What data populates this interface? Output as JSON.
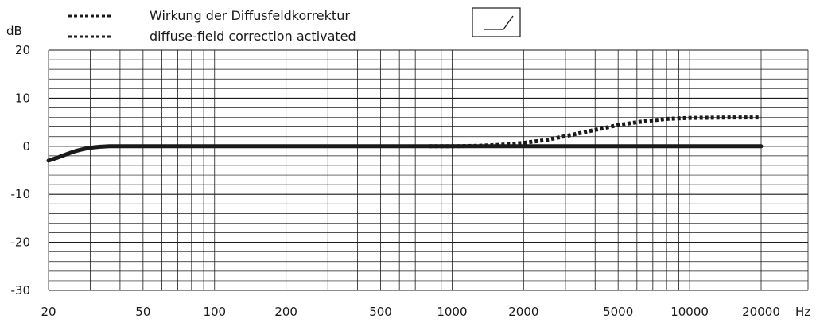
{
  "chart_data": {
    "type": "line",
    "title": "",
    "xlabel": "",
    "ylabel": "",
    "y_unit": "dB",
    "x_unit": "Hz",
    "x_scale": "log",
    "xlim": [
      20,
      20000
    ],
    "ylim": [
      -30,
      20
    ],
    "grid": true,
    "x_tick_labels": [
      "20",
      "50",
      "100",
      "200",
      "500",
      "1000",
      "2000",
      "5000",
      "10000",
      "20000"
    ],
    "y_tick_labels": [
      "20",
      "10",
      "0",
      "-10",
      "-20",
      "-30"
    ],
    "legend": {
      "placement": "top-left",
      "entries": [
        "Wirkung der Diffusfeldkorrektur",
        "diffuse-field correction activated"
      ]
    },
    "filter_symbol": "high-shelf-icon",
    "series": [
      {
        "style": "solid",
        "color": "#1a1a1a",
        "x": [
          20,
          22,
          24,
          26,
          28,
          30,
          33,
          36,
          40,
          50,
          100,
          1000,
          20000
        ],
        "y": [
          -3.0,
          -2.3,
          -1.6,
          -1.0,
          -0.6,
          -0.3,
          -0.1,
          0.0,
          0.0,
          0.0,
          0.0,
          0.0,
          0.0
        ]
      },
      {
        "name": "diffuse-field correction activated",
        "style": "dotted",
        "color": "#1a1a1a",
        "x": [
          800,
          1000,
          1300,
          1600,
          2000,
          2500,
          3000,
          4000,
          5000,
          6000,
          7000,
          8000,
          10000,
          15000,
          20000
        ],
        "y": [
          0.0,
          0.0,
          0.1,
          0.3,
          0.7,
          1.3,
          2.1,
          3.4,
          4.4,
          5.0,
          5.4,
          5.7,
          5.9,
          6.0,
          6.0
        ]
      }
    ]
  }
}
